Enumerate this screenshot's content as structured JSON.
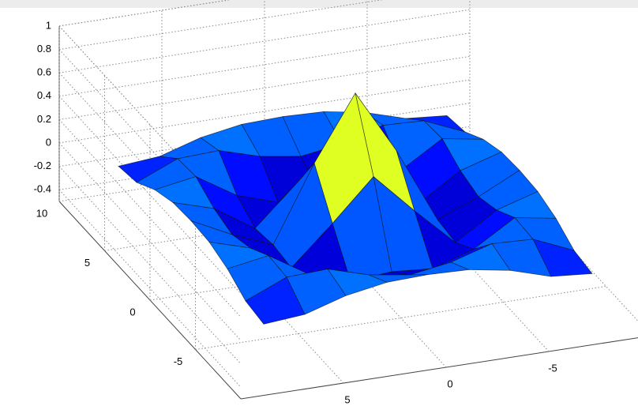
{
  "chart_data": {
    "type": "surface",
    "x": [
      -8,
      -6,
      -4,
      -2,
      0,
      2,
      4,
      6,
      8
    ],
    "y": [
      -8,
      -6,
      -4,
      -2,
      0,
      2,
      4,
      6,
      8
    ],
    "z": [
      [
        -0.084,
        -0.054,
        0.052,
        0.112,
        0.124,
        0.112,
        0.052,
        -0.054,
        -0.084
      ],
      [
        -0.054,
        0.095,
        0.111,
        0.007,
        -0.047,
        0.007,
        0.111,
        0.095,
        -0.054
      ],
      [
        0.052,
        0.111,
        -0.104,
        -0.217,
        -0.189,
        -0.217,
        -0.104,
        0.111,
        0.052
      ],
      [
        0.112,
        0.007,
        -0.217,
        0.109,
        0.455,
        0.109,
        -0.217,
        0.007,
        0.112
      ],
      [
        0.124,
        -0.047,
        -0.189,
        0.455,
        1,
        0.455,
        -0.189,
        -0.047,
        0.124
      ],
      [
        0.112,
        0.007,
        -0.217,
        0.109,
        0.455,
        0.109,
        -0.217,
        0.007,
        0.112
      ],
      [
        0.052,
        0.111,
        -0.104,
        -0.217,
        -0.189,
        -0.217,
        -0.104,
        0.111,
        0.052
      ],
      [
        -0.054,
        0.095,
        0.111,
        0.007,
        -0.047,
        0.007,
        0.111,
        0.095,
        -0.054
      ],
      [
        -0.084,
        -0.054,
        0.052,
        0.112,
        0.124,
        0.112,
        0.052,
        -0.054,
        -0.084
      ]
    ],
    "xlim": [
      -10,
      10
    ],
    "ylim": [
      -10,
      10
    ],
    "zlim": [
      -0.5,
      1
    ],
    "xticks": [
      -5,
      0,
      5
    ],
    "yticks": [
      -5,
      0,
      5,
      10
    ],
    "zticks": [
      -0.4,
      -0.2,
      0,
      0.2,
      0.4,
      0.6,
      0.8,
      1
    ],
    "colormap": "jet",
    "grid": true
  }
}
